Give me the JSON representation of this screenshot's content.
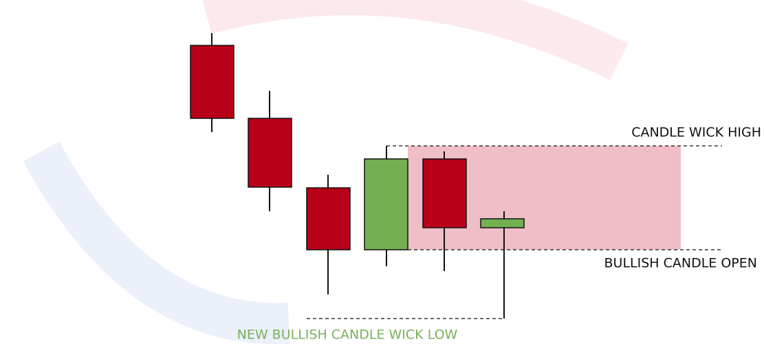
{
  "annotations": {
    "wick_high": "CANDLE WICK HIGH",
    "bullish_open": "BULLISH CANDLE OPEN",
    "new_wick_low": "NEW BULLISH CANDLE WICK LOW"
  }
}
